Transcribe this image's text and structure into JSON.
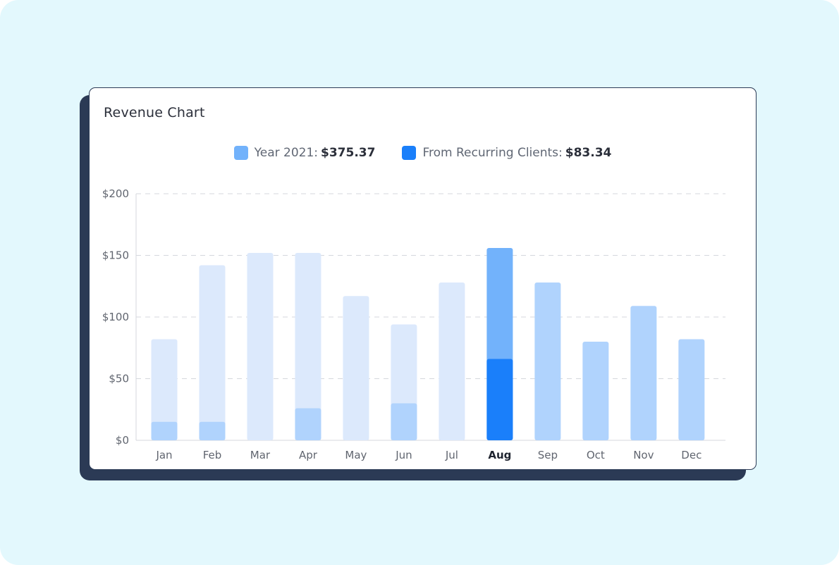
{
  "title": "Revenue Chart",
  "legend": {
    "total_label": "Year 2021:",
    "total_value": "$375.37",
    "recurring_label": "From Recurring Clients:",
    "recurring_value": "$83.34"
  },
  "colors": {
    "background": "#e3f8fd",
    "card_shadow": "#2b3a55",
    "bar_light": "#dce9fc",
    "bar_medium": "#b0d3fd",
    "bar_highlight_total": "#72b2fb",
    "bar_highlight_recurring": "#1a7ffa",
    "legend_total": "#72b2fb",
    "legend_recurring": "#1a7ffa"
  },
  "chart_data": {
    "type": "bar",
    "categories": [
      "Jan",
      "Feb",
      "Mar",
      "Apr",
      "May",
      "Jun",
      "Jul",
      "Aug",
      "Sep",
      "Oct",
      "Nov",
      "Dec"
    ],
    "series": [
      {
        "name": "Year 2021",
        "values": [
          82,
          142,
          152,
          152,
          117,
          94,
          128,
          156,
          128,
          80,
          109,
          82
        ]
      },
      {
        "name": "From Recurring Clients",
        "values": [
          15,
          15,
          0,
          26,
          0,
          30,
          0,
          66,
          null,
          null,
          null,
          null
        ]
      }
    ],
    "highlighted_category": "Aug",
    "ylim": [
      0,
      200
    ],
    "yticks": [
      0,
      50,
      100,
      150,
      200
    ],
    "ytick_labels": [
      "$0",
      "$50",
      "$100",
      "$150",
      "$200"
    ],
    "grid": true
  }
}
